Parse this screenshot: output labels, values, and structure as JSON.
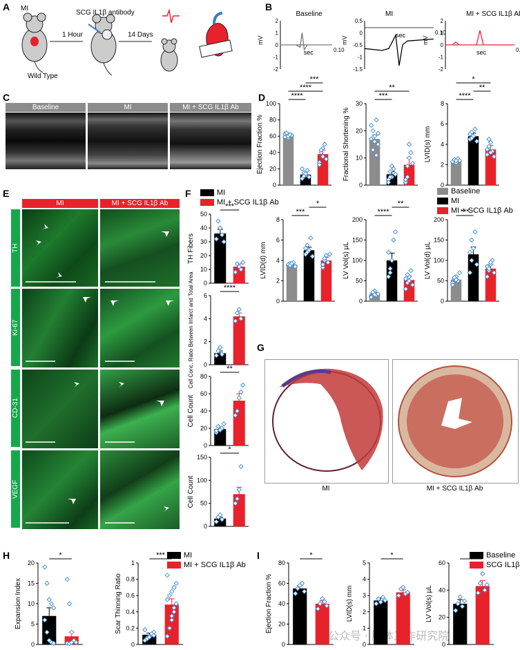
{
  "panel_letters": [
    "A",
    "B",
    "C",
    "D",
    "E",
    "F",
    "G",
    "H",
    "I"
  ],
  "panel_a": {
    "mi_label": "MI",
    "antibody_label": "SCG IL1β antibody",
    "wild_type_label": "Wild Type",
    "time1": "1 Hour",
    "time2": "14 Days"
  },
  "panel_b": {
    "traces": [
      {
        "title": "Baseline",
        "ylabel": "mV",
        "xlabel": "sec",
        "xmax": "0.10",
        "yticks": [
          "2",
          "1",
          "0",
          "-1",
          "-2"
        ],
        "color": "#7a7a7a"
      },
      {
        "title": "MI",
        "ylabel": "mV",
        "xlabel": "sec",
        "xmax": "0.10",
        "yticks": [
          "0.5",
          "0",
          "-0.5",
          "-1",
          "-1.5"
        ],
        "color": "#000000"
      },
      {
        "title": "MI + SCG IL1β Ab",
        "ylabel": "mV",
        "xlabel": "sec",
        "xmax": "0.10",
        "yticks": [
          "2",
          "1",
          "0",
          "-1",
          "-2"
        ],
        "color": "#e8222a"
      }
    ]
  },
  "panel_c": {
    "headers": [
      "Baseline",
      "MI",
      "MI + SCG IL1β Ab"
    ]
  },
  "panel_e": {
    "col_headers": [
      "MI",
      "MI + SCG IL1β Ab"
    ],
    "row_labels": [
      "TH",
      "Ki-67",
      "CD-31",
      "VEGF"
    ]
  },
  "legend_d": {
    "items": [
      "Baseline",
      "MI",
      "MI + SCG IL1β Ab"
    ],
    "colors": [
      "#8c8c8c",
      "#000000",
      "#e8222a"
    ]
  },
  "legend_f": {
    "items": [
      "MI",
      "MI + SCG IL1β Ab"
    ],
    "colors": [
      "#000000",
      "#e8222a"
    ]
  },
  "legend_h": {
    "items": [
      "MI",
      "MI + SCG IL1β Ab"
    ],
    "colors": [
      "#000000",
      "#e8222a"
    ]
  },
  "legend_i": {
    "items": [
      "Baseline",
      "SCG IL1β"
    ],
    "colors": [
      "#000000",
      "#e8222a"
    ]
  },
  "panel_g": {
    "captions": [
      "MI",
      "MI + SCG IL1β Ab"
    ]
  },
  "watermark": "公众号 · 脑体工作研究院",
  "chart_data": [
    {
      "id": "D1",
      "type": "bar",
      "ylabel": "Ejection Fraction %",
      "categories": [
        "Baseline",
        "MI",
        "MI + SCG IL1β Ab"
      ],
      "values": [
        61,
        13,
        38
      ],
      "errors": [
        2,
        3,
        5
      ],
      "ylim": [
        0,
        100
      ],
      "yticks": [
        0,
        20,
        40,
        60,
        80,
        100
      ],
      "colors": [
        "#8c8c8c",
        "#000000",
        "#e8222a"
      ],
      "points": [
        [
          63,
          60,
          58,
          62,
          61,
          59,
          64,
          60,
          62
        ],
        [
          8,
          15,
          12,
          18,
          10,
          20,
          11,
          14
        ],
        [
          28,
          40,
          45,
          50,
          32,
          25,
          43,
          35
        ]
      ],
      "sig": [
        {
          "a": 0,
          "b": 1,
          "text": "****"
        },
        {
          "a": 0,
          "b": 2,
          "text": "****"
        },
        {
          "a": 1,
          "b": 2,
          "text": "***"
        }
      ]
    },
    {
      "id": "D2",
      "type": "bar",
      "ylabel": "Fractional Shortening %",
      "categories": [
        "Baseline",
        "MI",
        "MI + SCG IL1β Ab"
      ],
      "values": [
        17,
        4,
        7.5
      ],
      "errors": [
        1.5,
        1,
        2.5
      ],
      "ylim": [
        0,
        30
      ],
      "yticks": [
        0,
        10,
        20,
        30
      ],
      "colors": [
        "#8c8c8c",
        "#000000",
        "#e8222a"
      ],
      "points": [
        [
          22,
          13,
          18,
          24,
          15,
          17,
          20,
          16,
          11,
          19
        ],
        [
          2,
          5,
          3,
          6,
          4,
          1,
          3,
          7
        ],
        [
          1,
          3,
          15,
          12,
          8,
          2,
          7,
          10
        ]
      ],
      "sig": [
        {
          "a": 0,
          "b": 1,
          "text": "***"
        },
        {
          "a": 0,
          "b": 2,
          "text": "**"
        }
      ]
    },
    {
      "id": "D3",
      "type": "bar",
      "ylabel": "LVID(s) mm",
      "categories": [
        "Baseline",
        "MI",
        "MI + SCG IL1β Ab"
      ],
      "values": [
        2.4,
        4.8,
        3.5
      ],
      "errors": [
        0.1,
        0.3,
        0.4
      ],
      "ylim": [
        0,
        8
      ],
      "yticks": [
        0,
        2,
        4,
        6,
        8
      ],
      "colors": [
        "#8c8c8c",
        "#000000",
        "#e8222a"
      ],
      "points": [
        [
          2.3,
          2.5,
          2.2,
          2.6,
          2.4,
          2.3,
          2.5,
          2.4
        ],
        [
          4.5,
          5.2,
          4.8,
          5.5,
          4.3,
          5.0,
          4.6
        ],
        [
          3.0,
          3.8,
          4.2,
          3.3,
          2.8,
          3.5,
          4.5,
          3.2
        ]
      ],
      "sig": [
        {
          "a": 0,
          "b": 1,
          "text": "****"
        },
        {
          "a": 1,
          "b": 2,
          "text": "**"
        },
        {
          "a": 0,
          "b": 2,
          "text": "*"
        }
      ]
    },
    {
      "id": "D4",
      "type": "bar",
      "ylabel": "LVID(d) mm",
      "categories": [
        "Baseline",
        "MI",
        "MI + SCG IL1β Ab"
      ],
      "values": [
        3.6,
        5.0,
        4.0
      ],
      "errors": [
        0.1,
        0.3,
        0.3
      ],
      "ylim": [
        0,
        8
      ],
      "yticks": [
        0,
        2,
        4,
        6,
        8
      ],
      "colors": [
        "#8c8c8c",
        "#000000",
        "#e8222a"
      ],
      "points": [
        [
          3.5,
          3.7,
          3.6,
          3.8,
          3.4,
          3.6,
          3.5,
          3.7
        ],
        [
          4.6,
          5.5,
          5.0,
          6.2,
          4.4,
          5.2,
          4.8
        ],
        [
          3.3,
          4.0,
          4.5,
          3.8,
          4.6,
          3.6,
          4.2
        ]
      ],
      "sig": [
        {
          "a": 0,
          "b": 1,
          "text": "***"
        },
        {
          "a": 1,
          "b": 2,
          "text": "*"
        }
      ]
    },
    {
      "id": "D5",
      "type": "bar",
      "ylabel": "LV Vol(s) µL",
      "categories": [
        "Baseline",
        "MI",
        "MI + SCG IL1β Ab"
      ],
      "values": [
        18,
        100,
        52
      ],
      "errors": [
        3,
        18,
        10
      ],
      "ylim": [
        0,
        200
      ],
      "yticks": [
        0,
        50,
        100,
        150,
        200
      ],
      "colors": [
        "#8c8c8c",
        "#000000",
        "#e8222a"
      ],
      "points": [
        [
          12,
          20,
          25,
          15,
          18,
          10,
          22,
          16
        ],
        [
          60,
          80,
          100,
          150,
          170,
          120,
          70
        ],
        [
          30,
          45,
          60,
          75,
          40,
          55,
          65,
          50
        ]
      ],
      "sig": [
        {
          "a": 0,
          "b": 1,
          "text": "****"
        },
        {
          "a": 1,
          "b": 2,
          "text": "**"
        }
      ]
    },
    {
      "id": "D6",
      "type": "bar",
      "ylabel": "LV Vol(d) µL",
      "categories": [
        "Baseline",
        "MI",
        "MI + SCG IL1β Ab"
      ],
      "values": [
        53,
        115,
        80
      ],
      "errors": [
        6,
        18,
        10
      ],
      "ylim": [
        0,
        200
      ],
      "yticks": [
        0,
        50,
        100,
        150,
        200
      ],
      "colors": [
        "#8c8c8c",
        "#000000",
        "#e8222a"
      ],
      "points": [
        [
          45,
          55,
          60,
          50,
          70,
          40,
          58,
          52
        ],
        [
          70,
          100,
          130,
          170,
          90,
          120,
          150
        ],
        [
          60,
          75,
          90,
          100,
          70,
          85,
          80,
          95
        ]
      ],
      "sig": [
        {
          "a": 0,
          "b": 1,
          "text": "***"
        }
      ]
    },
    {
      "id": "F1",
      "type": "bar",
      "ylabel": "TH Fibers",
      "categories": [
        "MI",
        "MI + SCG IL1β Ab"
      ],
      "values": [
        36,
        12
      ],
      "errors": [
        3,
        2
      ],
      "ylim": [
        0,
        50
      ],
      "yticks": [
        0,
        10,
        20,
        30,
        40,
        50
      ],
      "colors": [
        "#000000",
        "#e8222a"
      ],
      "points": [
        [
          32,
          45,
          40,
          35,
          30
        ],
        [
          8,
          14,
          12,
          10,
          15
        ]
      ],
      "sig": [
        {
          "a": 0,
          "b": 1,
          "text": "***"
        }
      ]
    },
    {
      "id": "F2",
      "type": "bar",
      "ylabel": "Cell Conc. Ratio Between Infarct and Total Area",
      "categories": [
        "MI",
        "MI + SCG IL1β Ab"
      ],
      "values": [
        1.0,
        4.2
      ],
      "errors": [
        0.2,
        0.3
      ],
      "ylim": [
        0,
        6
      ],
      "yticks": [
        0,
        2,
        4,
        6
      ],
      "colors": [
        "#000000",
        "#e8222a"
      ],
      "points": [
        [
          0.8,
          1.2,
          1.5,
          0.9
        ],
        [
          3.8,
          4.5,
          4.8,
          4.0
        ]
      ],
      "sig": [
        {
          "a": 0,
          "b": 1,
          "text": "****"
        }
      ]
    },
    {
      "id": "F3",
      "type": "bar",
      "ylabel": "Cell Count",
      "categories": [
        "MI",
        "MI + SCG IL1β Ab"
      ],
      "values": [
        19,
        52
      ],
      "errors": [
        2,
        8
      ],
      "ylim": [
        0,
        80
      ],
      "yticks": [
        0,
        20,
        40,
        60,
        80
      ],
      "colors": [
        "#000000",
        "#e8222a"
      ],
      "points": [
        [
          15,
          22,
          18,
          20,
          25,
          17
        ],
        [
          35,
          40,
          55,
          62,
          70
        ]
      ],
      "sig": [
        {
          "a": 0,
          "b": 1,
          "text": "**"
        }
      ]
    },
    {
      "id": "F4",
      "type": "bar",
      "ylabel": "Cell Count",
      "categories": [
        "MI",
        "MI + SCG IL1β Ab"
      ],
      "values": [
        17,
        70
      ],
      "errors": [
        3,
        15
      ],
      "ylim": [
        0,
        150
      ],
      "yticks": [
        0,
        50,
        100,
        150
      ],
      "colors": [
        "#000000",
        "#e8222a"
      ],
      "points": [
        [
          10,
          20,
          25,
          15
        ],
        [
          50,
          60,
          80,
          130
        ]
      ],
      "sig": [
        {
          "a": 0,
          "b": 1,
          "text": "*"
        }
      ]
    },
    {
      "id": "H1",
      "type": "bar",
      "ylabel": "Expansion Index",
      "categories": [
        "MI",
        "MI + SCG IL1β Ab"
      ],
      "values": [
        7,
        2
      ],
      "errors": [
        2,
        1
      ],
      "ylim": [
        0,
        20
      ],
      "yticks": [
        0,
        5,
        10,
        15,
        20
      ],
      "colors": [
        "#000000",
        "#e8222a"
      ],
      "points": [
        [
          19,
          15,
          11,
          10,
          9,
          6,
          3,
          1,
          0.5,
          0.3
        ],
        [
          16,
          10,
          3,
          1,
          0.5,
          0.3,
          0.2,
          0.5
        ]
      ],
      "sig": [
        {
          "a": 0,
          "b": 1,
          "text": "*"
        }
      ]
    },
    {
      "id": "H2",
      "type": "bar",
      "ylabel": "Scar Thinning Ratio",
      "categories": [
        "MI",
        "MI + SCG IL1β Ab"
      ],
      "values": [
        0.12,
        0.49
      ],
      "errors": [
        0.02,
        0.07
      ],
      "ylim": [
        0,
        1.0
      ],
      "yticks": [
        0,
        0.2,
        0.4,
        0.6,
        0.8,
        1.0
      ],
      "colors": [
        "#000000",
        "#e8222a"
      ],
      "points": [
        [
          0.05,
          0.08,
          0.1,
          0.12,
          0.15,
          0.18,
          0.07,
          0.09,
          0.13,
          0.11
        ],
        [
          0.1,
          0.2,
          0.3,
          0.4,
          0.5,
          0.55,
          0.6,
          0.65,
          0.7,
          0.75,
          0.85,
          0.2,
          0.35,
          0.45
        ]
      ],
      "sig": [
        {
          "a": 0,
          "b": 1,
          "text": "***"
        }
      ]
    },
    {
      "id": "I1",
      "type": "bar",
      "ylabel": "Ejection Fraction %",
      "categories": [
        "Baseline",
        "SCG IL1β"
      ],
      "values": [
        55,
        40
      ],
      "errors": [
        3,
        3
      ],
      "ylim": [
        0,
        80
      ],
      "yticks": [
        0,
        20,
        40,
        60,
        80
      ],
      "colors": [
        "#000000",
        "#e8222a"
      ],
      "points": [
        [
          50,
          55,
          58,
          60,
          52
        ],
        [
          35,
          40,
          45,
          42,
          38
        ]
      ],
      "sig": [
        {
          "a": 0,
          "b": 1,
          "text": "*"
        }
      ]
    },
    {
      "id": "I2",
      "type": "bar",
      "ylabel": "LVID(s) mm",
      "categories": [
        "Baseline",
        "SCG IL1β"
      ],
      "values": [
        2.7,
        3.2
      ],
      "errors": [
        0.15,
        0.15
      ],
      "ylim": [
        0,
        5
      ],
      "yticks": [
        0,
        1,
        2,
        3,
        4,
        5
      ],
      "colors": [
        "#000000",
        "#e8222a"
      ],
      "points": [
        [
          2.5,
          2.8,
          2.6,
          2.9,
          2.7
        ],
        [
          3.0,
          3.4,
          3.5,
          3.1,
          3.2
        ]
      ],
      "sig": [
        {
          "a": 0,
          "b": 1,
          "text": "*"
        }
      ]
    },
    {
      "id": "I3",
      "type": "bar",
      "ylabel": "LV Vol(s) µL",
      "categories": [
        "Baseline",
        "SCG IL1β"
      ],
      "values": [
        30,
        43
      ],
      "errors": [
        3,
        4
      ],
      "ylim": [
        0,
        60
      ],
      "yticks": [
        0,
        20,
        40,
        60
      ],
      "colors": [
        "#000000",
        "#e8222a"
      ],
      "points": [
        [
          25,
          30,
          35,
          28,
          32
        ],
        [
          38,
          45,
          52,
          40,
          44
        ]
      ],
      "sig": [
        {
          "a": 0,
          "b": 1,
          "text": "*"
        }
      ]
    }
  ]
}
